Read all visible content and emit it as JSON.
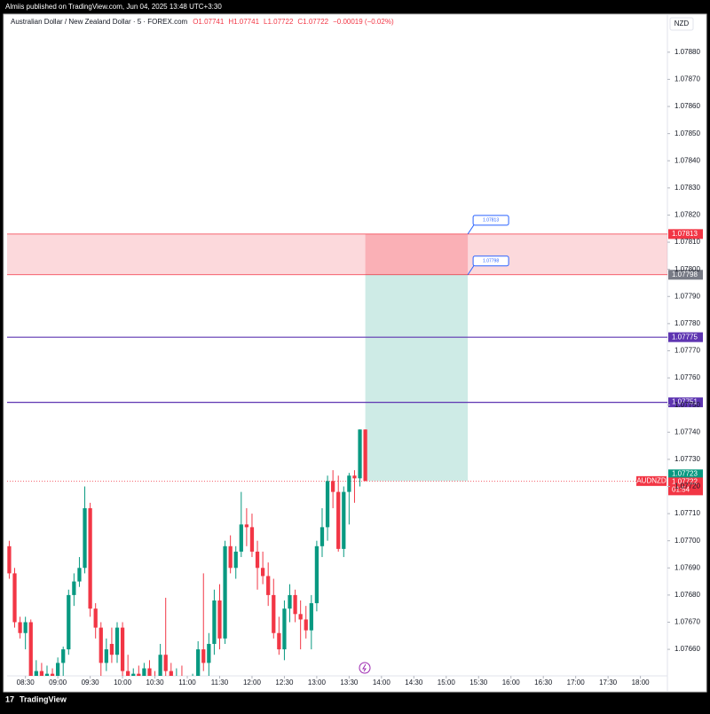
{
  "publisher_line": "Almiis published on TradingView.com, Jun 04, 2025 13:48 UTC+3:30",
  "brand": "TradingView",
  "chart_data": {
    "type": "candlestick",
    "title": "Australian Dollar / New Zealand Dollar · 5 · FOREX.com",
    "status_line": [
      "O1.07741",
      "H1.07741",
      "L1.07722",
      "C1.07722",
      "−0.00019 (−0.02%)"
    ],
    "currency": "NZD",
    "up_color": "#089981",
    "down_color": "#f23645",
    "x": [
      495,
      500,
      505,
      510,
      515,
      520,
      525,
      530,
      535,
      540,
      545,
      550,
      555,
      560,
      565,
      570,
      575,
      580,
      585,
      590,
      595,
      600,
      605,
      610,
      615,
      620,
      625,
      630,
      635,
      640,
      645,
      650,
      655,
      660,
      665,
      670,
      675,
      680,
      685,
      690,
      695,
      700,
      705,
      710,
      715,
      720,
      725,
      730,
      735,
      740,
      745,
      750,
      755,
      760,
      765,
      770,
      775,
      780,
      785,
      790,
      795,
      800,
      805,
      810,
      815,
      820,
      825
    ],
    "open": [
      1.07698,
      1.07688,
      1.0767,
      1.07666,
      1.0767,
      1.0765,
      1.07652,
      1.07649,
      1.07651,
      1.07648,
      1.07655,
      1.0766,
      1.0768,
      1.07685,
      1.0769,
      1.07712,
      1.07675,
      1.07668,
      1.07655,
      1.07662,
      1.07658,
      1.07668,
      1.07652,
      1.07649,
      1.07651,
      1.0765,
      1.07653,
      1.0765,
      1.07648,
      1.07658,
      1.07652,
      1.07649,
      1.0765,
      1.07648,
      1.07647,
      1.0765,
      1.0766,
      1.07655,
      1.07662,
      1.07678,
      1.07664,
      1.07698,
      1.0769,
      1.07696,
      1.07706,
      1.07705,
      1.07696,
      1.0769,
      1.07687,
      1.0768,
      1.07666,
      1.0766,
      1.07675,
      1.0768,
      1.07673,
      1.07671,
      1.07667,
      1.07677,
      1.07698,
      1.07705,
      1.07722,
      1.07718,
      1.07697,
      1.07718,
      1.07724,
      1.07723,
      1.07741
    ],
    "high": [
      1.077,
      1.0769,
      1.07672,
      1.07672,
      1.07671,
      1.07656,
      1.07655,
      1.07654,
      1.07653,
      1.07657,
      1.07661,
      1.07682,
      1.07688,
      1.07694,
      1.0772,
      1.07714,
      1.07677,
      1.0767,
      1.07664,
      1.07668,
      1.0767,
      1.0767,
      1.07658,
      1.07653,
      1.07654,
      1.07655,
      1.07656,
      1.07652,
      1.07662,
      1.07679,
      1.07655,
      1.07653,
      1.07654,
      1.0765,
      1.07651,
      1.07663,
      1.07688,
      1.07666,
      1.07682,
      1.07684,
      1.077,
      1.07702,
      1.07698,
      1.07718,
      1.07712,
      1.0771,
      1.077,
      1.07696,
      1.07692,
      1.07686,
      1.07672,
      1.07678,
      1.07684,
      1.07682,
      1.07678,
      1.07676,
      1.0768,
      1.077,
      1.07712,
      1.07724,
      1.07726,
      1.07724,
      1.0772,
      1.07725,
      1.07726,
      1.07741,
      1.07741
    ],
    "low": [
      1.07686,
      1.07668,
      1.07664,
      1.0766,
      1.07648,
      1.07646,
      1.07647,
      1.07646,
      1.07647,
      1.07646,
      1.0765,
      1.07658,
      1.07676,
      1.07683,
      1.07688,
      1.07672,
      1.07664,
      1.0765,
      1.07652,
      1.07655,
      1.07655,
      1.0765,
      1.07646,
      1.07646,
      1.07647,
      1.07648,
      1.07648,
      1.07646,
      1.07646,
      1.0765,
      1.07646,
      1.07646,
      1.07646,
      1.07645,
      1.07645,
      1.07647,
      1.07652,
      1.0765,
      1.07658,
      1.0766,
      1.07662,
      1.07688,
      1.07686,
      1.07694,
      1.07698,
      1.07694,
      1.07682,
      1.07684,
      1.07676,
      1.07664,
      1.07658,
      1.07656,
      1.0767,
      1.0767,
      1.0766,
      1.07664,
      1.0766,
      1.07674,
      1.07694,
      1.077,
      1.07712,
      1.07696,
      1.07694,
      1.07706,
      1.07714,
      1.0772,
      1.07722
    ],
    "close": [
      1.07688,
      1.0767,
      1.07666,
      1.0767,
      1.0765,
      1.07652,
      1.07649,
      1.07651,
      1.07648,
      1.07655,
      1.0766,
      1.0768,
      1.07685,
      1.0769,
      1.07712,
      1.07675,
      1.07668,
      1.07655,
      1.0766,
      1.07658,
      1.07668,
      1.07652,
      1.07649,
      1.07651,
      1.0765,
      1.07653,
      1.0765,
      1.07648,
      1.07658,
      1.07652,
      1.07649,
      1.0765,
      1.07648,
      1.07647,
      1.07649,
      1.0766,
      1.07655,
      1.07662,
      1.07678,
      1.07664,
      1.07698,
      1.0769,
      1.07696,
      1.07706,
      1.07705,
      1.07696,
      1.0769,
      1.07687,
      1.0768,
      1.07666,
      1.0766,
      1.07675,
      1.0768,
      1.07673,
      1.07671,
      1.07667,
      1.07677,
      1.07698,
      1.07705,
      1.07722,
      1.07718,
      1.07697,
      1.07718,
      1.07724,
      1.07723,
      1.07741,
      1.07722
    ],
    "xlim": [
      493,
      1105
    ],
    "ylim": [
      1.07645,
      1.07894
    ],
    "xticks": [
      {
        "value": 510,
        "label": "08:30"
      },
      {
        "value": 540,
        "label": "09:00"
      },
      {
        "value": 570,
        "label": "09:30"
      },
      {
        "value": 600,
        "label": "10:00"
      },
      {
        "value": 630,
        "label": "10:30"
      },
      {
        "value": 660,
        "label": "11:00"
      },
      {
        "value": 690,
        "label": "11:30"
      },
      {
        "value": 720,
        "label": "12:00"
      },
      {
        "value": 750,
        "label": "12:30"
      },
      {
        "value": 780,
        "label": "13:00"
      },
      {
        "value": 810,
        "label": "13:30"
      },
      {
        "value": 840,
        "label": "14:00"
      },
      {
        "value": 870,
        "label": "14:30"
      },
      {
        "value": 900,
        "label": "15:00"
      },
      {
        "value": 930,
        "label": "15:30"
      },
      {
        "value": 960,
        "label": "16:00"
      },
      {
        "value": 990,
        "label": "16:30"
      },
      {
        "value": 1020,
        "label": "17:00"
      },
      {
        "value": 1050,
        "label": "17:30"
      },
      {
        "value": 1080,
        "label": "18:00"
      }
    ],
    "yticks": [
      {
        "value": 1.0788,
        "label": "1.07880"
      },
      {
        "value": 1.0787,
        "label": "1.07870"
      },
      {
        "value": 1.0786,
        "label": "1.07860"
      },
      {
        "value": 1.0785,
        "label": "1.07850"
      },
      {
        "value": 1.0784,
        "label": "1.07840"
      },
      {
        "value": 1.0783,
        "label": "1.07830"
      },
      {
        "value": 1.0782,
        "label": "1.07820"
      },
      {
        "value": 1.0781,
        "label": "1.07810"
      },
      {
        "value": 1.078,
        "label": "1.07800"
      },
      {
        "value": 1.0779,
        "label": "1.07790"
      },
      {
        "value": 1.0778,
        "label": "1.07780"
      },
      {
        "value": 1.0777,
        "label": "1.07770"
      },
      {
        "value": 1.0776,
        "label": "1.07760"
      },
      {
        "value": 1.0775,
        "label": "1.07750"
      },
      {
        "value": 1.0774,
        "label": "1.07740"
      },
      {
        "value": 1.0773,
        "label": "1.07730"
      },
      {
        "value": 1.0772,
        "label": "1.07720"
      },
      {
        "value": 1.0771,
        "label": "1.07710"
      },
      {
        "value": 1.077,
        "label": "1.07700"
      },
      {
        "value": 1.0769,
        "label": "1.07690"
      },
      {
        "value": 1.0768,
        "label": "1.07680"
      },
      {
        "value": 1.0767,
        "label": "1.07670"
      },
      {
        "value": 1.0766,
        "label": "1.07660"
      }
    ],
    "zone": {
      "top": 1.07813,
      "bottom": 1.07798,
      "color": "#f7a1a7"
    },
    "levels": [
      {
        "value": 1.07775,
        "color": "#5e35b1"
      },
      {
        "value": 1.07751,
        "color": "#5e35b1"
      }
    ],
    "position": {
      "start": 825,
      "end": 920,
      "stop": 1.07813,
      "entry": 1.07798,
      "target": 1.07722
    },
    "bid_label": {
      "value": 1.07723,
      "color": "#089981"
    },
    "last_price": {
      "symbol": "AUDNZD",
      "value": 1.07722,
      "countdown": "01:54",
      "color": "#f23645"
    }
  }
}
